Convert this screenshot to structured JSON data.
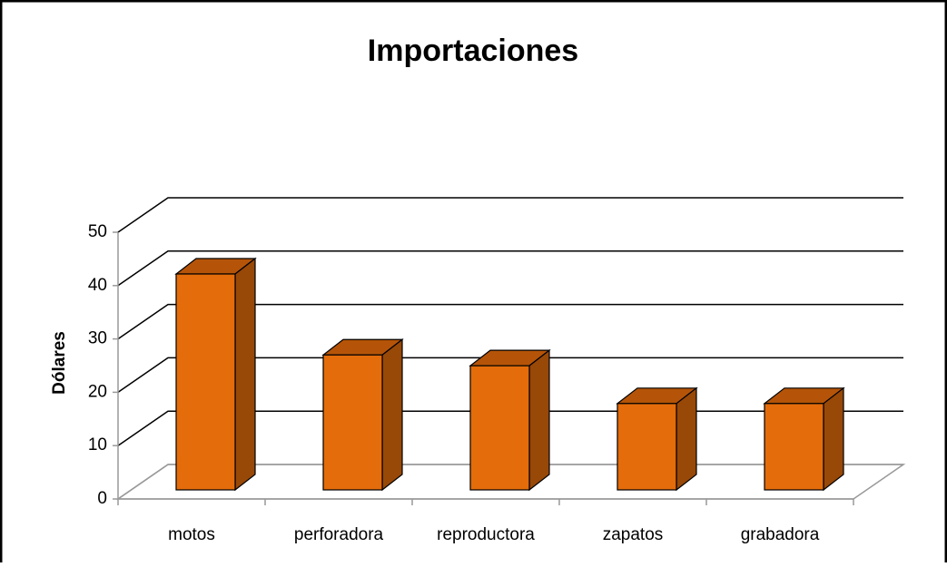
{
  "chart_data": {
    "type": "bar",
    "title": "Importaciones",
    "y_label": "Dólares",
    "categories": [
      "motos",
      "perforadora",
      "reproductora",
      "zapatos",
      "grabadora"
    ],
    "values": [
      40,
      25,
      23,
      16,
      16
    ],
    "color": "#e46c0a",
    "ylim": [
      0,
      50
    ],
    "yticks": [
      0,
      10,
      20,
      30,
      40,
      50
    ],
    "grid": true
  }
}
